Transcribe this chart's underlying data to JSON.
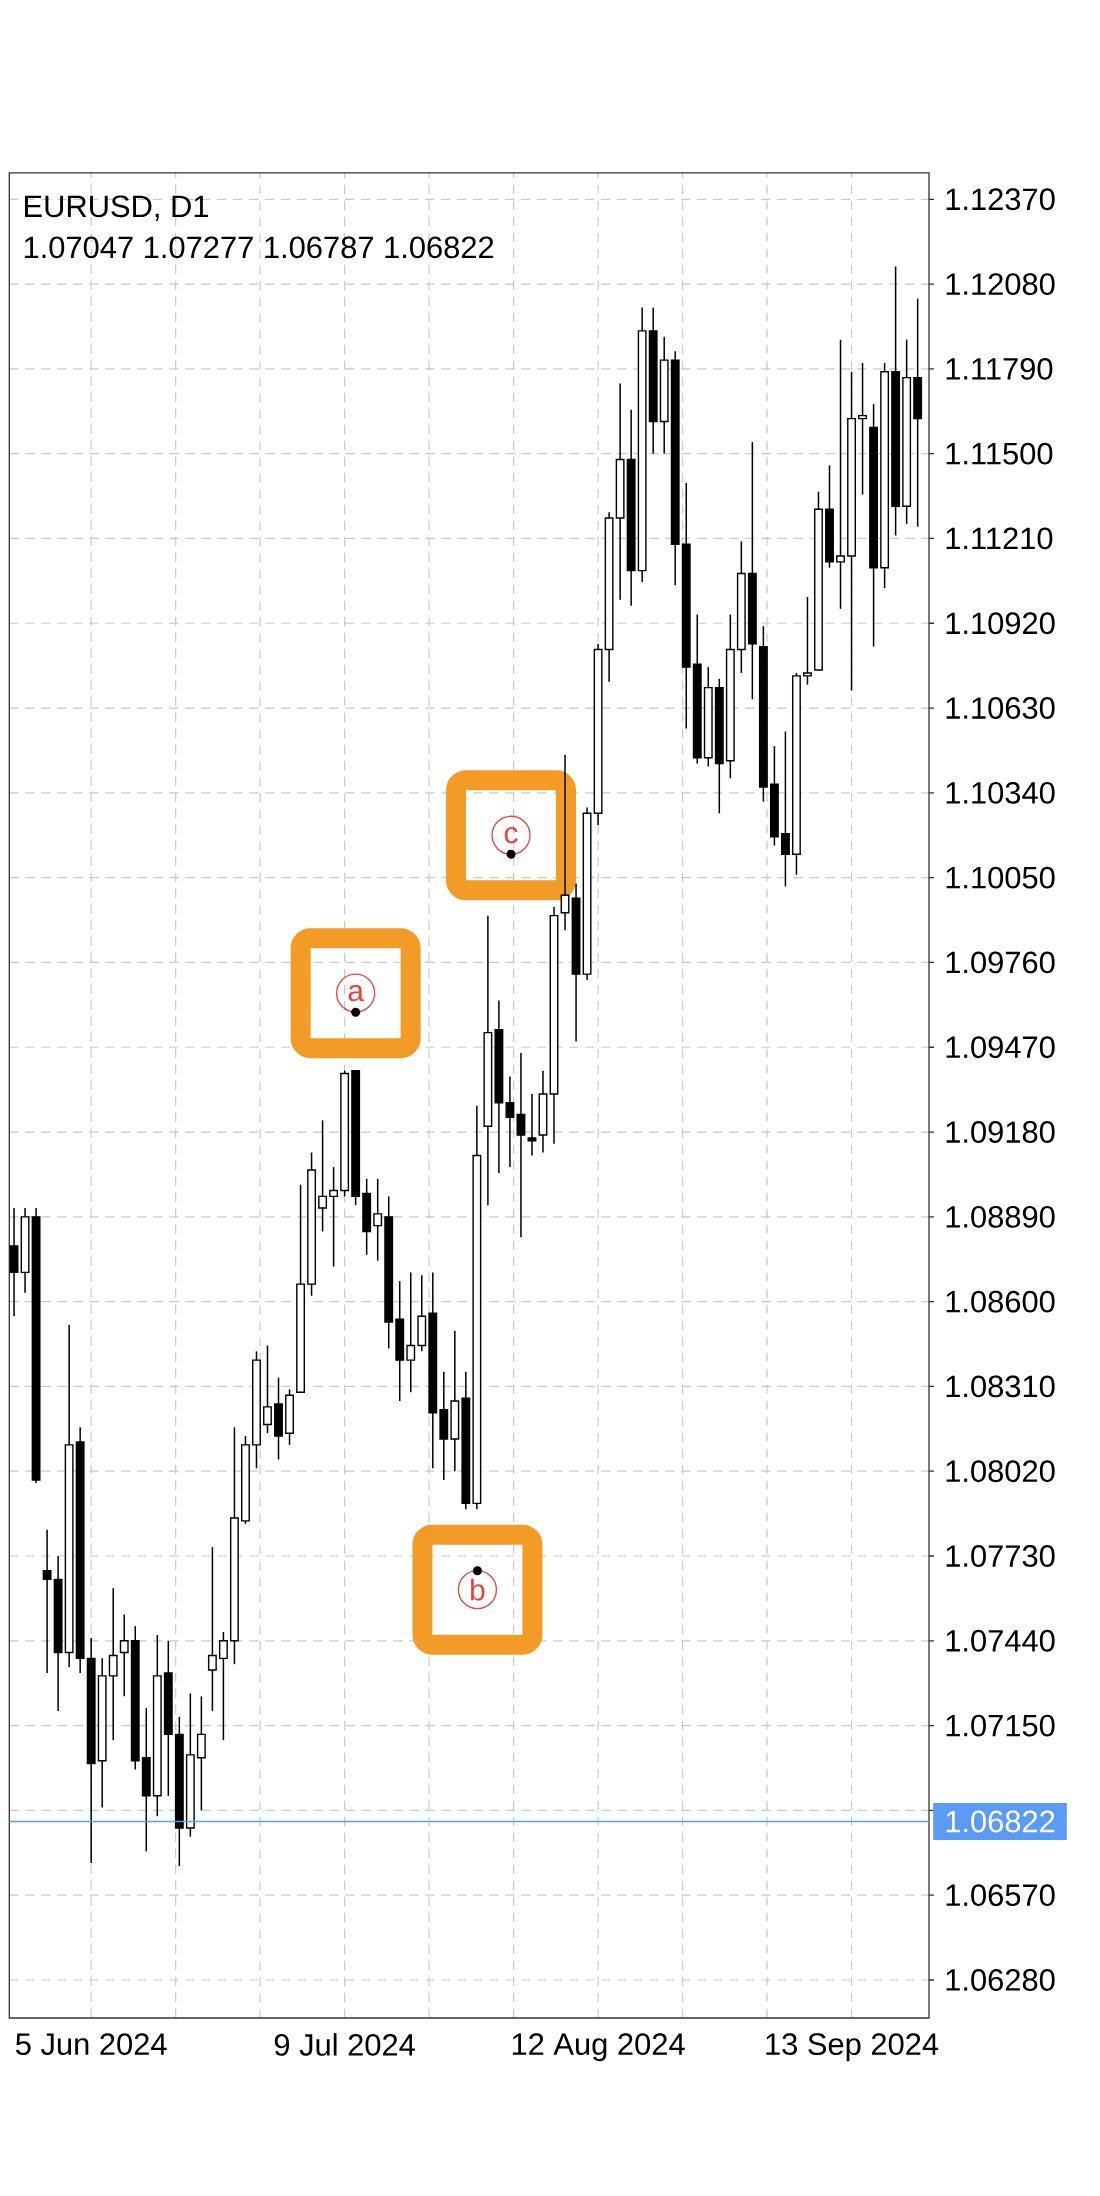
{
  "chart_data": {
    "type": "candlestick",
    "title": "EURUSD, D1",
    "subtitle": "1.07047 1.07277 1.06787 1.06822",
    "categories": [
      null,
      null,
      null,
      null,
      null,
      null,
      null,
      "5 Jun 2024",
      null,
      null,
      null,
      null,
      null,
      null,
      null,
      null,
      null,
      null,
      null,
      null,
      null,
      null,
      null,
      null,
      null,
      null,
      null,
      null,
      null,
      null,
      "9 Jul 2024",
      null,
      null,
      null,
      null,
      null,
      null,
      null,
      null,
      null,
      null,
      null,
      null,
      null,
      null,
      null,
      null,
      null,
      null,
      null,
      null,
      null,
      null,
      "12 Aug 2024",
      null,
      null,
      null,
      null,
      null,
      null,
      null,
      null,
      null,
      null,
      null,
      null,
      null,
      null,
      null,
      null,
      null,
      null,
      null,
      null,
      null,
      null,
      "13 Sep 2024",
      null,
      null,
      null,
      null,
      null,
      null
    ],
    "ohlc": [
      [
        1.0879,
        1.0892,
        1.0855,
        1.087
      ],
      [
        1.087,
        1.0892,
        1.0863,
        1.0889
      ],
      [
        1.0889,
        1.0892,
        1.0798,
        1.0799
      ],
      [
        1.0768,
        1.0782,
        1.0733,
        1.0765
      ],
      [
        1.0765,
        1.0773,
        1.072,
        1.074
      ],
      [
        1.074,
        1.0852,
        1.0735,
        1.0811
      ],
      [
        1.0812,
        1.0817,
        1.0733,
        1.0738
      ],
      [
        1.0738,
        1.0745,
        1.0668,
        1.0702
      ],
      [
        1.0703,
        1.0738,
        1.0687,
        1.0732
      ],
      [
        1.0732,
        1.0762,
        1.071,
        1.0739
      ],
      [
        1.074,
        1.0753,
        1.0725,
        1.0744
      ],
      [
        1.0744,
        1.0749,
        1.07,
        1.0703
      ],
      [
        1.0704,
        1.0721,
        1.0672,
        1.0691
      ],
      [
        1.0691,
        1.0746,
        1.0684,
        1.0732
      ],
      [
        1.0733,
        1.0744,
        1.0691,
        1.0712
      ],
      [
        1.0712,
        1.0718,
        1.0667,
        1.068
      ],
      [
        1.068,
        1.0726,
        1.0677,
        1.0705
      ],
      [
        1.0704,
        1.0725,
        1.0686,
        1.0712
      ],
      [
        1.0734,
        1.0776,
        1.072,
        1.0739
      ],
      [
        1.0738,
        1.0747,
        1.071,
        1.0744
      ],
      [
        1.0744,
        1.0817,
        1.0736,
        1.0786
      ],
      [
        1.0785,
        1.0814,
        1.0784,
        1.0811
      ],
      [
        1.0811,
        1.0843,
        1.0803,
        1.084
      ],
      [
        1.0818,
        1.0845,
        1.0815,
        1.0824
      ],
      [
        1.0825,
        1.0834,
        1.0806,
        1.0814
      ],
      [
        1.0815,
        1.083,
        1.0811,
        1.0828
      ],
      [
        1.0829,
        1.09,
        1.0829,
        1.0866
      ],
      [
        1.0866,
        1.0911,
        1.0862,
        1.0905
      ],
      [
        1.0892,
        1.0922,
        1.0884,
        1.0896
      ],
      [
        1.0896,
        1.0906,
        1.0872,
        1.0898
      ],
      [
        1.0898,
        1.0939,
        1.0896,
        1.0938
      ],
      [
        1.0939,
        1.0939,
        1.0893,
        1.0896
      ],
      [
        1.0897,
        1.0902,
        1.0876,
        1.0884
      ],
      [
        1.0886,
        1.0902,
        1.0874,
        1.089
      ],
      [
        1.0889,
        1.0896,
        1.0844,
        1.0853
      ],
      [
        1.0854,
        1.0867,
        1.0826,
        1.084
      ],
      [
        1.084,
        1.087,
        1.0829,
        1.0845
      ],
      [
        1.0845,
        1.0869,
        1.0843,
        1.0855
      ],
      [
        1.0856,
        1.087,
        1.0803,
        1.0822
      ],
      [
        1.0823,
        1.0836,
        1.0799,
        1.0813
      ],
      [
        1.0813,
        1.085,
        1.0802,
        1.0826
      ],
      [
        1.0827,
        1.0836,
        1.0789,
        1.0791
      ],
      [
        1.0791,
        1.0927,
        1.0789,
        1.091
      ],
      [
        1.092,
        1.0992,
        1.0893,
        1.0952
      ],
      [
        1.0953,
        1.0963,
        1.0904,
        1.0928
      ],
      [
        1.0928,
        1.0937,
        1.0906,
        1.0923
      ],
      [
        1.0924,
        1.0945,
        1.0882,
        1.0917
      ],
      [
        1.0916,
        1.0931,
        1.091,
        1.0915
      ],
      [
        1.0917,
        1.0939,
        1.0911,
        1.0931
      ],
      [
        1.0931,
        1.0995,
        1.0914,
        1.0992
      ],
      [
        1.0993,
        1.1047,
        1.0987,
        1.0999
      ],
      [
        1.0998,
        1.1003,
        1.0949,
        1.0972
      ],
      [
        1.0972,
        1.1029,
        1.097,
        1.1027
      ],
      [
        1.1027,
        1.1085,
        1.1023,
        1.1083
      ],
      [
        1.1083,
        1.113,
        1.1072,
        1.1128
      ],
      [
        1.1128,
        1.1174,
        1.11,
        1.1148
      ],
      [
        1.1148,
        1.1165,
        1.1098,
        1.111
      ],
      [
        1.111,
        1.12,
        1.1106,
        1.1192
      ],
      [
        1.1192,
        1.12,
        1.115,
        1.1161
      ],
      [
        1.1161,
        1.119,
        1.115,
        1.1182
      ],
      [
        1.1182,
        1.1185,
        1.1105,
        1.1119
      ],
      [
        1.1119,
        1.114,
        1.1056,
        1.1077
      ],
      [
        1.1078,
        1.1095,
        1.1044,
        1.1046
      ],
      [
        1.1046,
        1.1077,
        1.1043,
        1.107
      ],
      [
        1.107,
        1.1073,
        1.1027,
        1.1044
      ],
      [
        1.1045,
        1.1095,
        1.1039,
        1.1083
      ],
      [
        1.1083,
        1.112,
        1.1075,
        1.1109
      ],
      [
        1.1109,
        1.1154,
        1.1066,
        1.1085
      ],
      [
        1.1084,
        1.1091,
        1.1031,
        1.1036
      ],
      [
        1.1037,
        1.105,
        1.1016,
        1.1019
      ],
      [
        1.102,
        1.1055,
        1.1002,
        1.1013
      ],
      [
        1.1013,
        1.1075,
        1.1006,
        1.1074
      ],
      [
        1.1074,
        1.1101,
        1.1071,
        1.1075
      ],
      [
        1.1076,
        1.1137,
        1.1076,
        1.1131
      ],
      [
        1.1131,
        1.1146,
        1.1111,
        1.1113
      ],
      [
        1.1113,
        1.1189,
        1.1097,
        1.1115
      ],
      [
        1.1115,
        1.1178,
        1.1069,
        1.1162
      ],
      [
        1.1162,
        1.1181,
        1.1136,
        1.1163
      ],
      [
        1.1159,
        1.1167,
        1.1084,
        1.1111
      ],
      [
        1.1111,
        1.1181,
        1.1104,
        1.1178
      ],
      [
        1.1178,
        1.1214,
        1.1122,
        1.1132
      ],
      [
        1.1132,
        1.1189,
        1.1126,
        1.1176
      ],
      [
        1.1176,
        1.1203,
        1.1125,
        1.1162
      ]
    ],
    "color": "#000000",
    "ylim": [
      1.0615,
      1.1246
    ],
    "yticks": [
      {
        "value": 1.0628,
        "label": "1.06280"
      },
      {
        "value": 1.0657,
        "label": "1.06570"
      },
      {
        "value": 1.0686,
        "label": null
      },
      {
        "value": 1.0715,
        "label": "1.07150"
      },
      {
        "value": 1.0744,
        "label": "1.07440"
      },
      {
        "value": 1.0773,
        "label": "1.07730"
      },
      {
        "value": 1.0802,
        "label": "1.08020"
      },
      {
        "value": 1.0831,
        "label": "1.08310"
      },
      {
        "value": 1.086,
        "label": "1.08600"
      },
      {
        "value": 1.0889,
        "label": "1.08890"
      },
      {
        "value": 1.0918,
        "label": "1.09180"
      },
      {
        "value": 1.0947,
        "label": "1.09470"
      },
      {
        "value": 1.0976,
        "label": "1.09760"
      },
      {
        "value": 1.1005,
        "label": "1.10050"
      },
      {
        "value": 1.1034,
        "label": "1.10340"
      },
      {
        "value": 1.1063,
        "label": "1.10630"
      },
      {
        "value": 1.1092,
        "label": "1.10920"
      },
      {
        "value": 1.1121,
        "label": "1.11210"
      },
      {
        "value": 1.115,
        "label": "1.11500"
      },
      {
        "value": 1.1179,
        "label": "1.11790"
      },
      {
        "value": 1.1208,
        "label": "1.12080"
      },
      {
        "value": 1.1237,
        "label": "1.12370"
      }
    ],
    "grid": true,
    "ref_lines": [
      {
        "axis": "y",
        "value": 1.06822,
        "label": "1.06822",
        "color": "#5b9bf5"
      }
    ],
    "annotations": [
      {
        "text": "a",
        "y": 1.0959
      },
      {
        "text": "b",
        "y": 1.0768
      },
      {
        "text": "c",
        "y": 1.1013
      }
    ]
  }
}
